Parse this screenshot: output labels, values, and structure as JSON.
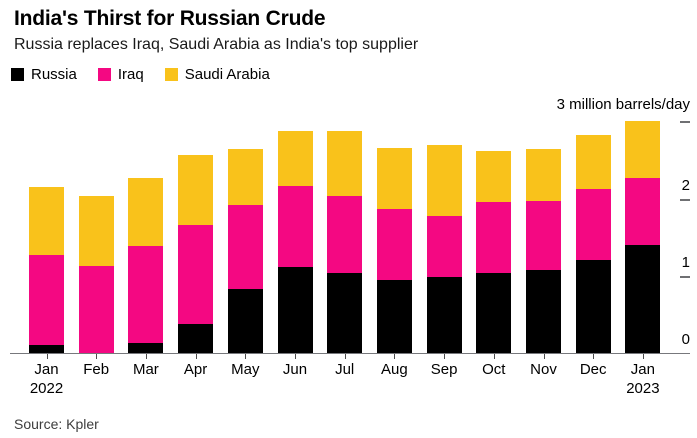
{
  "chart_data": {
    "type": "bar",
    "stacked": true,
    "title": "India's Thirst for Russian Crude",
    "subtitle": "Russia replaces Iraq, Saudi Arabia as India's top supplier",
    "unit_label": "3 million barrels/day",
    "ylabel": "million barrels/day",
    "ylim": [
      0,
      3
    ],
    "yticks": [
      0,
      1,
      2,
      3
    ],
    "ytick_text_labels": [
      "0",
      "1",
      "2"
    ],
    "grid": false,
    "legend_position": "top",
    "categories": [
      "Jan",
      "Feb",
      "Mar",
      "Apr",
      "May",
      "Jun",
      "Jul",
      "Aug",
      "Sep",
      "Oct",
      "Nov",
      "Dec",
      "Jan"
    ],
    "year_labels": [
      {
        "index": 0,
        "label": "2022"
      },
      {
        "index": 12,
        "label": "2023"
      }
    ],
    "series": [
      {
        "name": "Russia",
        "color": "#000000",
        "values": [
          0.1,
          0.0,
          0.13,
          0.37,
          0.83,
          1.12,
          1.04,
          0.94,
          0.98,
          1.04,
          1.08,
          1.2,
          1.4
        ]
      },
      {
        "name": "Iraq",
        "color": "#F40882",
        "values": [
          1.17,
          1.13,
          1.26,
          1.29,
          1.09,
          1.04,
          0.99,
          0.92,
          0.8,
          0.91,
          0.89,
          0.93,
          0.87
        ]
      },
      {
        "name": "Saudi Arabia",
        "color": "#F9C21B",
        "values": [
          0.88,
          0.9,
          0.88,
          0.91,
          0.72,
          0.71,
          0.85,
          0.79,
          0.91,
          0.67,
          0.67,
          0.7,
          0.74
        ]
      }
    ],
    "source": "Source: Kpler"
  }
}
